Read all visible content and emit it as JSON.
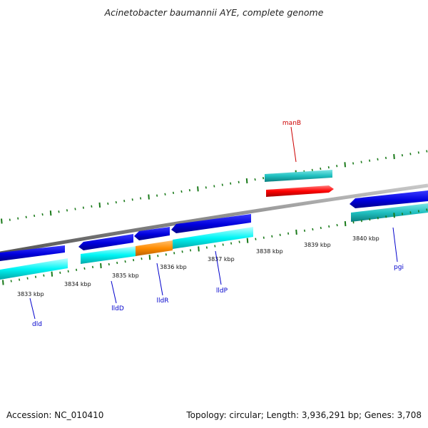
{
  "title": "Acinetobacter baumannii AYE, complete genome",
  "footer": {
    "accession": "Accession: NC_010410",
    "summary": "Topology: circular; Length: 3,936,291 bp; Genes: 3,708"
  },
  "ruler_labels": [
    "3833 kbp",
    "3834 kbp",
    "3835 kbp",
    "3836 kbp",
    "3837 kbp",
    "3838 kbp",
    "3839 kbp",
    "3840 kbp"
  ],
  "genes": {
    "dld": "dld",
    "lldD": "lldD",
    "lldR": "lldR",
    "lldP": "lldP",
    "manB": "manB",
    "pgi": "pgi"
  },
  "colors": {
    "cds_forward": "#0000dd",
    "cds_reverse": "#0000dd",
    "feature_cyan": "#00f5f5",
    "feature_teal": "#20c0c0",
    "feature_orange": "#ff8c00",
    "feature_red": "#ff0000",
    "backbone": "#8a8a8a",
    "ticks": "#1a7a1a",
    "label_blue": "#0000cc",
    "label_red": "#cc0000"
  }
}
